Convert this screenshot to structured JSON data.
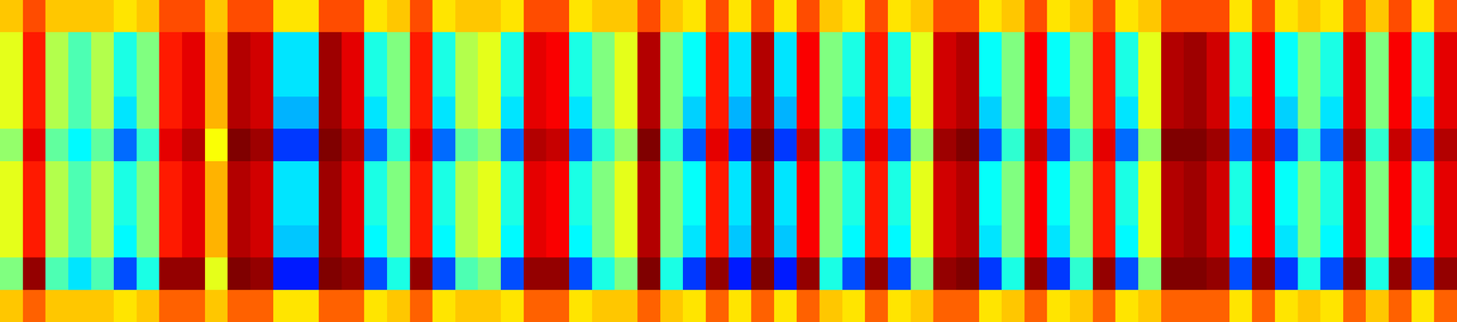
{
  "chart_data": {
    "type": "heatmap",
    "tick_labels": false,
    "zlim": [
      0,
      1
    ],
    "cells": [
      [
        0.68,
        0.6,
        0.6,
        0.6,
        0.52,
        0.6,
        0.6,
        0.6,
        0.5,
        0.68
      ],
      [
        0.8,
        0.85,
        0.85,
        0.85,
        0.9,
        0.85,
        0.85,
        0.85,
        0.98,
        0.78
      ],
      [
        0.68,
        0.55,
        0.55,
        0.55,
        0.47,
        0.55,
        0.55,
        0.55,
        0.45,
        0.68
      ],
      [
        0.68,
        0.45,
        0.45,
        0.45,
        0.37,
        0.45,
        0.45,
        0.45,
        0.35,
        0.68
      ],
      [
        0.68,
        0.55,
        0.55,
        0.55,
        0.47,
        0.55,
        0.55,
        0.55,
        0.45,
        0.68
      ],
      [
        0.65,
        0.4,
        0.4,
        0.35,
        0.23,
        0.4,
        0.4,
        0.37,
        0.2,
        0.65
      ],
      [
        0.68,
        0.5,
        0.5,
        0.5,
        0.42,
        0.5,
        0.5,
        0.5,
        0.4,
        0.68
      ],
      [
        0.8,
        0.85,
        0.85,
        0.85,
        0.9,
        0.85,
        0.85,
        0.85,
        0.98,
        0.78
      ],
      [
        0.8,
        0.9,
        0.9,
        0.9,
        0.95,
        0.9,
        0.9,
        0.9,
        0.98,
        0.78
      ],
      [
        0.68,
        0.7,
        0.7,
        0.7,
        0.62,
        0.7,
        0.7,
        0.7,
        0.6,
        0.68
      ],
      [
        0.8,
        0.95,
        0.95,
        0.95,
        1,
        0.95,
        0.95,
        0.95,
        1,
        0.78
      ],
      [
        0.8,
        0.92,
        0.92,
        0.92,
        0.97,
        0.92,
        0.92,
        0.92,
        0.98,
        0.78
      ],
      [
        0.65,
        0.35,
        0.35,
        0.3,
        0.18,
        0.35,
        0.35,
        0.32,
        0.15,
        0.65
      ],
      [
        0.65,
        0.35,
        0.35,
        0.3,
        0.18,
        0.35,
        0.35,
        0.32,
        0.15,
        0.65
      ],
      [
        0.8,
        0.97,
        0.97,
        0.97,
        1,
        0.97,
        0.97,
        0.97,
        1,
        0.78
      ],
      [
        0.8,
        0.9,
        0.9,
        0.9,
        0.95,
        0.9,
        0.9,
        0.9,
        0.98,
        0.78
      ],
      [
        0.65,
        0.4,
        0.4,
        0.35,
        0.23,
        0.4,
        0.4,
        0.37,
        0.2,
        0.65
      ],
      [
        0.68,
        0.5,
        0.5,
        0.5,
        0.42,
        0.5,
        0.5,
        0.5,
        0.4,
        0.68
      ],
      [
        0.8,
        0.85,
        0.85,
        0.85,
        0.9,
        0.85,
        0.85,
        0.85,
        0.98,
        0.78
      ],
      [
        0.65,
        0.4,
        0.4,
        0.35,
        0.23,
        0.4,
        0.4,
        0.37,
        0.2,
        0.65
      ],
      [
        0.68,
        0.55,
        0.55,
        0.55,
        0.47,
        0.55,
        0.55,
        0.55,
        0.45,
        0.68
      ],
      [
        0.68,
        0.6,
        0.6,
        0.6,
        0.52,
        0.6,
        0.6,
        0.6,
        0.5,
        0.68
      ],
      [
        0.65,
        0.4,
        0.4,
        0.35,
        0.23,
        0.4,
        0.4,
        0.37,
        0.2,
        0.65
      ],
      [
        0.8,
        0.9,
        0.9,
        0.9,
        0.95,
        0.9,
        0.9,
        0.9,
        0.98,
        0.78
      ],
      [
        0.8,
        0.88,
        0.88,
        0.88,
        0.93,
        0.88,
        0.88,
        0.88,
        0.98,
        0.78
      ],
      [
        0.65,
        0.4,
        0.4,
        0.35,
        0.23,
        0.4,
        0.4,
        0.37,
        0.2,
        0.65
      ],
      [
        0.68,
        0.5,
        0.5,
        0.5,
        0.42,
        0.5,
        0.5,
        0.5,
        0.4,
        0.68
      ],
      [
        0.68,
        0.6,
        0.6,
        0.6,
        0.52,
        0.6,
        0.6,
        0.6,
        0.5,
        0.68
      ],
      [
        0.8,
        0.95,
        0.95,
        0.95,
        1,
        0.95,
        0.95,
        0.95,
        1,
        0.78
      ],
      [
        0.68,
        0.5,
        0.5,
        0.5,
        0.42,
        0.5,
        0.5,
        0.5,
        0.4,
        0.68
      ],
      [
        0.65,
        0.38,
        0.38,
        0.33,
        0.21,
        0.38,
        0.38,
        0.35,
        0.18,
        0.65
      ],
      [
        0.8,
        0.85,
        0.85,
        0.85,
        0.9,
        0.85,
        0.85,
        0.85,
        0.98,
        0.78
      ],
      [
        0.65,
        0.35,
        0.35,
        0.3,
        0.18,
        0.35,
        0.35,
        0.32,
        0.15,
        0.65
      ],
      [
        0.8,
        0.95,
        0.95,
        0.95,
        1,
        0.95,
        0.95,
        0.95,
        1,
        0.78
      ],
      [
        0.65,
        0.35,
        0.35,
        0.3,
        0.18,
        0.35,
        0.35,
        0.32,
        0.15,
        0.65
      ],
      [
        0.8,
        0.88,
        0.88,
        0.88,
        0.93,
        0.88,
        0.88,
        0.88,
        0.98,
        0.78
      ],
      [
        0.68,
        0.5,
        0.5,
        0.5,
        0.42,
        0.5,
        0.5,
        0.5,
        0.4,
        0.68
      ],
      [
        0.65,
        0.4,
        0.4,
        0.35,
        0.23,
        0.4,
        0.4,
        0.37,
        0.2,
        0.65
      ],
      [
        0.8,
        0.85,
        0.85,
        0.85,
        0.9,
        0.85,
        0.85,
        0.85,
        0.98,
        0.78
      ],
      [
        0.65,
        0.4,
        0.4,
        0.35,
        0.23,
        0.4,
        0.4,
        0.37,
        0.2,
        0.65
      ],
      [
        0.68,
        0.6,
        0.6,
        0.6,
        0.52,
        0.6,
        0.6,
        0.6,
        0.5,
        0.68
      ],
      [
        0.8,
        0.92,
        0.92,
        0.92,
        0.97,
        0.92,
        0.92,
        0.92,
        0.98,
        0.78
      ],
      [
        0.8,
        0.95,
        0.95,
        0.95,
        1,
        0.95,
        0.95,
        0.95,
        1,
        0.78
      ],
      [
        0.65,
        0.38,
        0.38,
        0.33,
        0.21,
        0.38,
        0.38,
        0.35,
        0.18,
        0.65
      ],
      [
        0.68,
        0.5,
        0.5,
        0.5,
        0.42,
        0.5,
        0.5,
        0.5,
        0.4,
        0.68
      ],
      [
        0.8,
        0.88,
        0.88,
        0.88,
        0.93,
        0.88,
        0.88,
        0.88,
        0.98,
        0.78
      ],
      [
        0.65,
        0.38,
        0.38,
        0.33,
        0.21,
        0.38,
        0.38,
        0.35,
        0.18,
        0.65
      ],
      [
        0.68,
        0.52,
        0.52,
        0.52,
        0.44,
        0.52,
        0.52,
        0.52,
        0.42,
        0.68
      ],
      [
        0.8,
        0.85,
        0.85,
        0.85,
        0.9,
        0.85,
        0.85,
        0.85,
        0.98,
        0.78
      ],
      [
        0.65,
        0.4,
        0.4,
        0.35,
        0.23,
        0.4,
        0.4,
        0.37,
        0.2,
        0.65
      ],
      [
        0.68,
        0.6,
        0.6,
        0.6,
        0.52,
        0.6,
        0.6,
        0.6,
        0.5,
        0.68
      ],
      [
        0.8,
        0.95,
        0.95,
        0.95,
        1,
        0.95,
        0.95,
        0.95,
        1,
        0.78
      ],
      [
        0.8,
        0.97,
        0.97,
        0.97,
        1,
        0.97,
        0.97,
        0.97,
        1,
        0.78
      ],
      [
        0.8,
        0.92,
        0.92,
        0.92,
        0.97,
        0.92,
        0.92,
        0.92,
        0.98,
        0.78
      ],
      [
        0.65,
        0.4,
        0.4,
        0.35,
        0.23,
        0.4,
        0.4,
        0.37,
        0.2,
        0.65
      ],
      [
        0.8,
        0.88,
        0.88,
        0.88,
        0.93,
        0.88,
        0.88,
        0.88,
        0.98,
        0.78
      ],
      [
        0.65,
        0.38,
        0.38,
        0.33,
        0.21,
        0.38,
        0.38,
        0.35,
        0.18,
        0.65
      ],
      [
        0.68,
        0.5,
        0.5,
        0.5,
        0.42,
        0.5,
        0.5,
        0.5,
        0.4,
        0.68
      ],
      [
        0.65,
        0.4,
        0.4,
        0.35,
        0.23,
        0.4,
        0.4,
        0.37,
        0.2,
        0.65
      ],
      [
        0.8,
        0.9,
        0.9,
        0.9,
        0.95,
        0.9,
        0.9,
        0.9,
        0.98,
        0.78
      ],
      [
        0.68,
        0.5,
        0.5,
        0.5,
        0.42,
        0.5,
        0.5,
        0.5,
        0.4,
        0.68
      ],
      [
        0.8,
        0.88,
        0.88,
        0.88,
        0.93,
        0.88,
        0.88,
        0.88,
        0.98,
        0.78
      ],
      [
        0.65,
        0.4,
        0.4,
        0.35,
        0.23,
        0.4,
        0.4,
        0.37,
        0.2,
        0.65
      ],
      [
        0.8,
        0.9,
        0.9,
        0.9,
        0.95,
        0.9,
        0.9,
        0.9,
        0.98,
        0.78
      ]
    ]
  }
}
